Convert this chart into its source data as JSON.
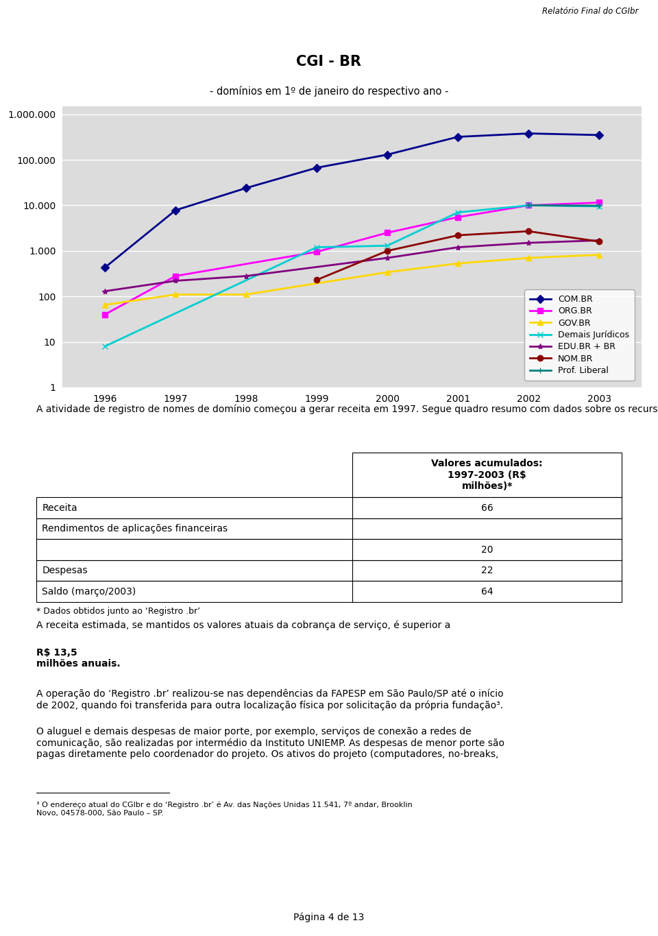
{
  "title": "CGI - BR",
  "subtitle": "- domínios em 1º de janeiro do respectivo ano -",
  "header_text": "Relatório Final do CGIbr",
  "years": [
    1996,
    1997,
    1998,
    1999,
    2000,
    2001,
    2002,
    2003
  ],
  "series": {
    "COM.BR": {
      "values": [
        430,
        7800,
        24000,
        67000,
        130000,
        320000,
        380000,
        350000
      ],
      "color": "#00008B",
      "marker": "D",
      "linewidth": 2
    },
    "ORG.BR": {
      "values": [
        40,
        280,
        null,
        950,
        2500,
        5500,
        10000,
        11500
      ],
      "color": "#FF00FF",
      "marker": "s",
      "linewidth": 2
    },
    "GOV.BR": {
      "values": [
        65,
        110,
        110,
        null,
        340,
        530,
        700,
        820
      ],
      "color": "#FFD700",
      "marker": "^",
      "linewidth": 2
    },
    "Demais Jurídicos": {
      "values": [
        8,
        null,
        null,
        1200,
        1300,
        7000,
        10000,
        9500
      ],
      "color": "#00CED1",
      "marker": "x",
      "linewidth": 2
    },
    "EDU.BR + BR": {
      "values": [
        130,
        220,
        280,
        null,
        700,
        1200,
        1500,
        1700
      ],
      "color": "#800080",
      "marker": "*",
      "linewidth": 2
    },
    "NOM.BR": {
      "values": [
        null,
        null,
        null,
        230,
        1000,
        2200,
        2700,
        1600
      ],
      "color": "#8B0000",
      "marker": "o",
      "linewidth": 2
    },
    "Prof. Liberal": {
      "values": [
        null,
        null,
        null,
        null,
        null,
        null,
        10000,
        9800
      ],
      "color": "#008080",
      "marker": "+",
      "linewidth": 2
    }
  },
  "yticks": [
    1,
    10,
    100,
    1000,
    10000,
    100000,
    1000000
  ],
  "ytick_labels": [
    "1",
    "10",
    "100",
    "1.000",
    "10.000",
    "100.000",
    "1.000.000"
  ],
  "plot_bg_color": "#DCDCDC",
  "page_bg": "#FFFFFF",
  "text_para1": "A atividade de registro de nomes de domínio começou a gerar receita em 1997. Segue quadro resumo com dados sobre os recursos envolvidos desde aquela data:",
  "table_header_col2": "Valores acumulados:\n1997-2003 (R$\nmilhões)*",
  "table_rows": [
    [
      "Receita",
      "66"
    ],
    [
      "Rendimentos de aplicações financeiras",
      ""
    ],
    [
      "",
      "20"
    ],
    [
      "Despesas",
      "22"
    ],
    [
      "Saldo (março/2003)",
      "64"
    ]
  ],
  "table_footnote": "* Dados obtidos junto ao ‘Registro .br’",
  "text_para2a": "A receita estimada, se mantidos os valores atuais da cobrança de serviço, é superior a ",
  "text_para2b": "R$ 13,5\nmilhões anuais",
  "text_para2c": ".",
  "text_para3": "A operação do ‘Registro .br’ realizou-se nas dependências da FAPESP em São Paulo/SP até o início\nde 2002, quando foi transferida para outra localização física por solicitação da própria fundação³.",
  "text_para4": "O aluguel e demais despesas de maior porte, por exemplo, serviços de conexão a redes de\ncomunicação, são realizadas por intermédio da Instituto UNIEMP. As despesas de menor porte são\npagas diretamente pelo coordenador do projeto. Os ativos do projeto (computadores, no-breaks,",
  "footnote3": "³ O endereço atual do CGIbr e do ‘Registro .br’ é Av. das Nações Unidas 11.541, 7º andar, Brooklin\nNovo, 04578-000, São Paulo – SP.",
  "page_footer": "Página 4 de 13"
}
